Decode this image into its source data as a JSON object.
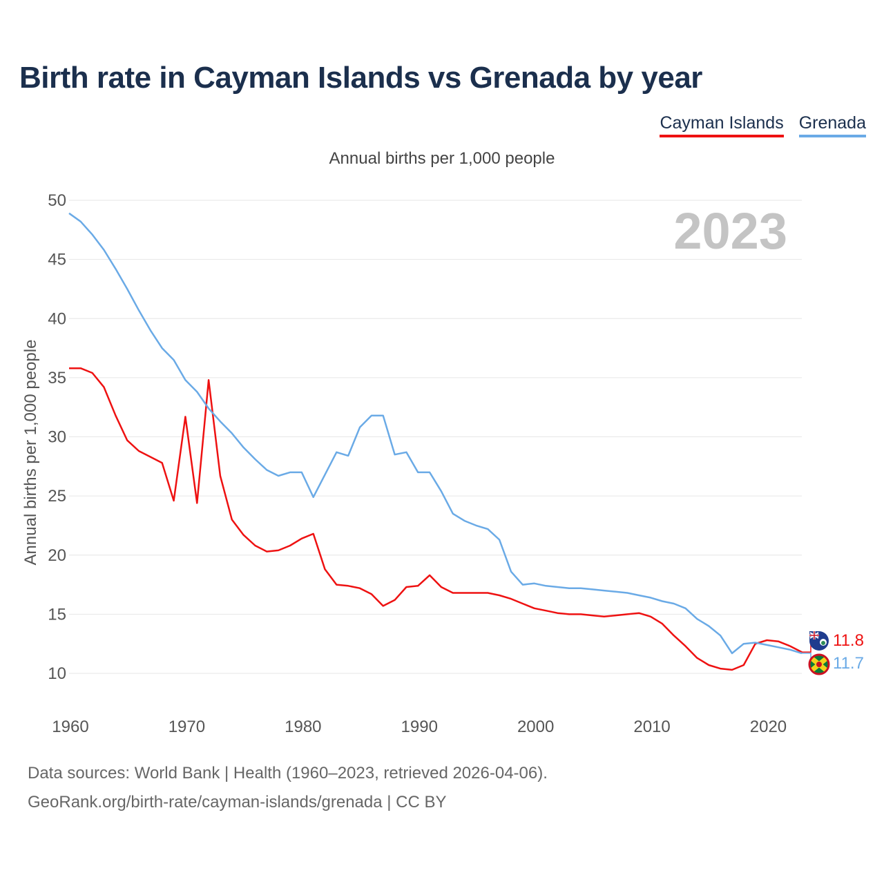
{
  "title": "Birth rate in Cayman Islands vs Grenada by year",
  "subtitle": "Annual births per 1,000 people",
  "year_label": "2023",
  "footer": {
    "line1": "Data sources: World Bank | Health (1960–2023, retrieved 2026-04-06).",
    "line2": "GeoRank.org/birth-rate/cayman-islands/grenada | CC BY"
  },
  "legend": [
    {
      "name": "Cayman Islands",
      "color": "#ee1111"
    },
    {
      "name": "Grenada",
      "color": "#6aaae6"
    }
  ],
  "end_labels": {
    "cayman": "11.8",
    "grenada": "11.7"
  },
  "flags": {
    "cayman": "cayman-islands-flag-icon",
    "grenada": "grenada-flag-icon"
  },
  "chart_data": {
    "type": "line",
    "title": "Birth rate in Cayman Islands vs Grenada by year",
    "xlabel": "",
    "ylabel": "Annual births per 1,000 people",
    "xlim": [
      1960,
      2023
    ],
    "ylim": [
      10,
      50
    ],
    "x_ticks": [
      1960,
      1970,
      1980,
      1990,
      2000,
      2010,
      2020
    ],
    "y_ticks": [
      10,
      15,
      20,
      25,
      30,
      35,
      40,
      45,
      50
    ],
    "grid": true,
    "legend_position": "top-right",
    "x": [
      1960,
      1961,
      1962,
      1963,
      1964,
      1965,
      1966,
      1967,
      1968,
      1969,
      1970,
      1971,
      1972,
      1973,
      1974,
      1975,
      1976,
      1977,
      1978,
      1979,
      1980,
      1981,
      1982,
      1983,
      1984,
      1985,
      1986,
      1987,
      1988,
      1989,
      1990,
      1991,
      1992,
      1993,
      1994,
      1995,
      1996,
      1997,
      1998,
      1999,
      2000,
      2001,
      2002,
      2003,
      2004,
      2005,
      2006,
      2007,
      2008,
      2009,
      2010,
      2011,
      2012,
      2013,
      2014,
      2015,
      2016,
      2017,
      2018,
      2019,
      2020,
      2021,
      2022,
      2023
    ],
    "series": [
      {
        "name": "Cayman Islands",
        "color": "#ee1111",
        "values": [
          35.8,
          35.8,
          35.4,
          34.2,
          31.8,
          29.7,
          28.8,
          28.3,
          27.8,
          24.6,
          31.7,
          24.4,
          34.8,
          26.7,
          23.0,
          21.7,
          20.8,
          20.3,
          20.4,
          20.8,
          21.4,
          21.8,
          18.8,
          17.5,
          17.4,
          17.2,
          16.7,
          15.7,
          16.2,
          17.3,
          17.4,
          18.3,
          17.3,
          16.8,
          16.8,
          16.8,
          16.8,
          16.6,
          16.3,
          15.9,
          15.5,
          15.3,
          15.1,
          15.0,
          15.0,
          14.9,
          14.8,
          14.9,
          15.0,
          15.1,
          14.8,
          14.2,
          13.2,
          12.3,
          11.3,
          10.7,
          10.4,
          10.3,
          10.7,
          12.5,
          12.8,
          12.7,
          12.3,
          11.8
        ]
      },
      {
        "name": "Grenada",
        "color": "#6aaae6",
        "values": [
          48.9,
          48.2,
          47.1,
          45.8,
          44.2,
          42.5,
          40.7,
          39.0,
          37.5,
          36.5,
          34.8,
          33.8,
          32.4,
          31.3,
          30.3,
          29.1,
          28.1,
          27.2,
          26.7,
          27.0,
          27.0,
          24.9,
          26.8,
          28.7,
          28.4,
          30.8,
          31.8,
          31.8,
          28.5,
          28.7,
          27.0,
          27.0,
          25.4,
          23.5,
          22.9,
          22.5,
          22.2,
          21.3,
          18.6,
          17.5,
          17.6,
          17.4,
          17.3,
          17.2,
          17.2,
          17.1,
          17.0,
          16.9,
          16.8,
          16.6,
          16.4,
          16.1,
          15.9,
          15.5,
          14.6,
          14.0,
          13.2,
          11.7,
          12.5,
          12.6,
          12.4,
          12.2,
          12.0,
          11.7
        ]
      }
    ]
  }
}
